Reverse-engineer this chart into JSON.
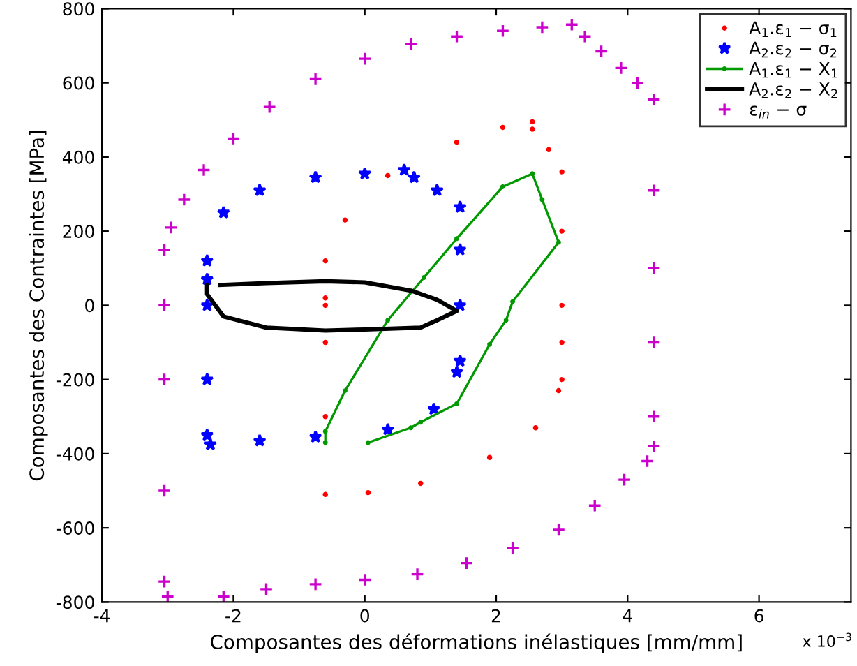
{
  "chart_data": {
    "type": "line",
    "xlabel": "Composantes des déformations inélastiques [mm/mm]",
    "ylabel": "Composantes des Contraintes [MPa]",
    "xlim": [
      -4,
      7.4
    ],
    "ylim": [
      -800,
      800
    ],
    "xticks": [
      -4,
      -2,
      0,
      2,
      4,
      6
    ],
    "yticks": [
      -800,
      -600,
      -400,
      -200,
      0,
      200,
      400,
      600,
      800
    ],
    "grid": false,
    "legend": "top right",
    "annotations": [
      "x 10$^{−3}$"
    ],
    "series": [
      {
        "name": "A$_{1}$.ε$_{1}$ − σ$_{1}$",
        "type": "scatter",
        "marker": "point",
        "color": "#ff0000",
        "x": [
          -0.6,
          -0.6,
          -0.6,
          -0.6,
          -0.6,
          -0.6,
          -0.3,
          0.35,
          1.4,
          2.1,
          2.55,
          2.55,
          2.8,
          3.0,
          3.0,
          3.0,
          3.0,
          3.0,
          2.95,
          2.6,
          1.9,
          0.85,
          0.05
        ],
        "values": [
          -510,
          -300,
          -100,
          0,
          20,
          120,
          230,
          350,
          440,
          480,
          495,
          475,
          420,
          360,
          200,
          0,
          -100,
          -200,
          -230,
          -330,
          -410,
          -480,
          -505
        ]
      },
      {
        "name": "A$_{2}$.ε$_{2}$ − σ$_{2}$",
        "type": "scatter",
        "marker": "star",
        "color": "#0000ff",
        "x": [
          1.45,
          1.45,
          1.45,
          1.4,
          1.05,
          0.35,
          -0.75,
          -1.6,
          -2.35,
          -2.4,
          -2.4,
          -2.4,
          -2.4,
          -2.4,
          -2.15,
          -1.6,
          -0.75,
          0.0,
          0.6,
          0.75,
          1.1,
          1.45
        ],
        "values": [
          150,
          0,
          -150,
          -180,
          -280,
          -335,
          -355,
          -365,
          -375,
          -350,
          -200,
          0,
          70,
          120,
          250,
          310,
          345,
          355,
          365,
          345,
          310,
          265
        ]
      },
      {
        "name": "A$_{1}$.ε$_{1}$ − X$_{1}$",
        "marker": "point",
        "line_style": "solid",
        "color": "#009900",
        "x": [
          -0.6,
          -0.6,
          -0.3,
          0.35,
          0.9,
          1.4,
          2.1,
          2.55,
          2.7,
          2.95,
          2.25,
          2.15,
          1.9,
          1.4,
          0.85,
          0.7,
          0.05
        ],
        "values": [
          -370,
          -340,
          -230,
          -40,
          75,
          180,
          320,
          355,
          285,
          170,
          10,
          -40,
          -105,
          -265,
          -315,
          -330,
          -370
        ]
      },
      {
        "name": "A$_{2}$.ε$_{2}$ − X$_{2}$",
        "marker": "none",
        "line_style": "solid",
        "color": "#000000",
        "x": [
          -2.2,
          -1.5,
          -0.6,
          0.0,
          0.7,
          1.1,
          1.4,
          1.1,
          0.85,
          0.0,
          -0.6,
          -1.5,
          -2.15,
          -2.4,
          -2.4
        ],
        "values": [
          55,
          60,
          65,
          62,
          40,
          15,
          -15,
          -40,
          -60,
          -65,
          -68,
          -60,
          -30,
          30,
          55
        ]
      },
      {
        "name": "ε$_{in}$ − σ",
        "type": "scatter",
        "marker": "cross",
        "color": "#cc00cc",
        "x": [
          -3.0,
          -3.05,
          -3.05,
          -3.05,
          -3.05,
          -3.05,
          -2.95,
          -2.75,
          -2.45,
          -2.0,
          -1.45,
          -0.75,
          0.0,
          0.7,
          1.4,
          2.1,
          2.7,
          3.15,
          3.35,
          3.6,
          3.9,
          4.15,
          4.4,
          4.4,
          4.4,
          4.4,
          4.4,
          4.4,
          4.3,
          3.95,
          3.5,
          2.95,
          2.25,
          1.55,
          0.8,
          0.0,
          -0.75,
          -1.5,
          -2.15
        ],
        "values": [
          -785,
          -745,
          -500,
          -200,
          0,
          150,
          210,
          285,
          365,
          450,
          535,
          610,
          665,
          705,
          725,
          740,
          750,
          757,
          725,
          685,
          640,
          600,
          555,
          310,
          100,
          -100,
          -300,
          -380,
          -420,
          -470,
          -540,
          -605,
          -655,
          -695,
          -725,
          -740,
          -752,
          -765,
          -785
        ]
      }
    ]
  }
}
